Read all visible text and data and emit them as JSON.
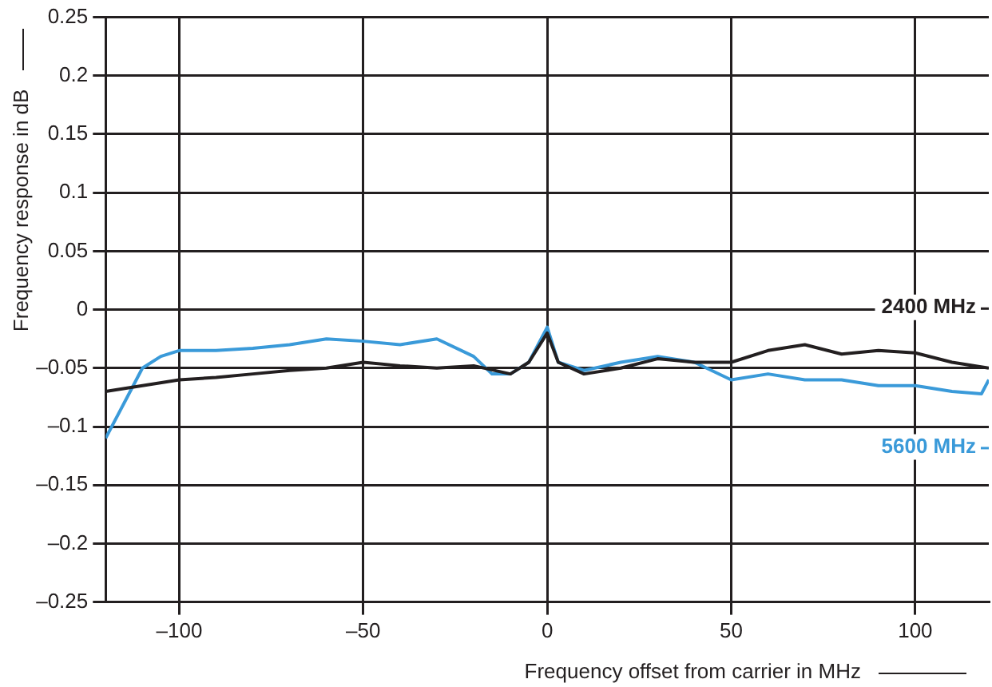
{
  "chart_data": {
    "type": "line",
    "xlabel": "Frequency offset from carrier in MHz",
    "ylabel": "Frequency response in dB",
    "xlim": [
      -120,
      120
    ],
    "xticks": [
      {
        "value": -100,
        "label": "–100"
      },
      {
        "value": -50,
        "label": "–50"
      },
      0,
      50,
      100
    ],
    "ylim": [
      -0.25,
      0.25
    ],
    "yticks": [
      {
        "value": -0.25,
        "label": "–0.25"
      },
      {
        "value": -0.2,
        "label": "–0.2"
      },
      {
        "value": -0.15,
        "label": "–0.15"
      },
      {
        "value": -0.1,
        "label": "–0.1"
      },
      {
        "value": -0.05,
        "label": "–0.05"
      },
      0,
      0.05,
      0.1,
      0.15,
      0.2,
      0.25
    ],
    "grid": true,
    "legend": "right",
    "marker": "none",
    "line_style": "solid",
    "series": [
      {
        "name": "2400 MHz",
        "color": "#231f20",
        "x": [
          -120,
          -110,
          -100,
          -90,
          -80,
          -70,
          -60,
          -50,
          -40,
          -30,
          -20,
          -10,
          -5,
          0,
          3,
          10,
          20,
          30,
          40,
          50,
          60,
          70,
          80,
          90,
          100,
          110,
          120
        ],
        "values": [
          -0.07,
          -0.065,
          -0.06,
          -0.058,
          -0.055,
          -0.052,
          -0.05,
          -0.045,
          -0.048,
          -0.05,
          -0.048,
          -0.055,
          -0.045,
          -0.02,
          -0.045,
          -0.055,
          -0.05,
          -0.042,
          -0.045,
          -0.045,
          -0.035,
          -0.03,
          -0.038,
          -0.035,
          -0.037,
          -0.045,
          -0.05
        ]
      },
      {
        "name": "5600 MHz",
        "color": "#3a9ad9",
        "x": [
          -120,
          -115,
          -110,
          -105,
          -100,
          -90,
          -80,
          -70,
          -60,
          -50,
          -40,
          -30,
          -20,
          -15,
          -10,
          -5,
          0,
          3,
          10,
          20,
          30,
          40,
          50,
          60,
          70,
          80,
          90,
          100,
          110,
          118,
          120
        ],
        "values": [
          -0.11,
          -0.08,
          -0.05,
          -0.04,
          -0.035,
          -0.035,
          -0.033,
          -0.03,
          -0.025,
          -0.027,
          -0.03,
          -0.025,
          -0.04,
          -0.055,
          -0.055,
          -0.045,
          -0.015,
          -0.045,
          -0.052,
          -0.045,
          -0.04,
          -0.045,
          -0.06,
          -0.055,
          -0.06,
          -0.06,
          -0.065,
          -0.065,
          -0.07,
          -0.072,
          -0.06
        ]
      }
    ]
  }
}
